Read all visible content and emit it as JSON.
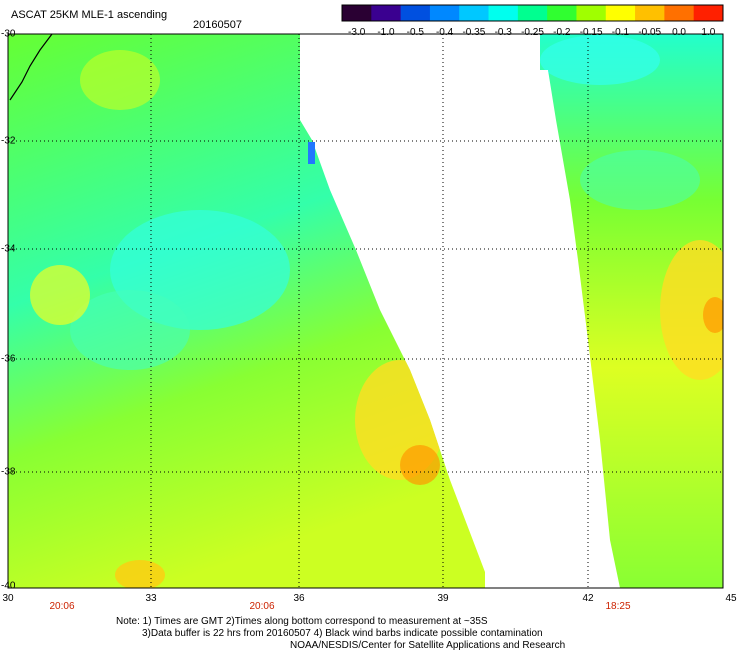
{
  "header": {
    "title": "ASCAT 25KM MLE-1 ascending",
    "date": "20160507"
  },
  "colorbar": {
    "labels": [
      "-3.0",
      "-1.0",
      "-0.5",
      "-0.4",
      "-0.35",
      "-0.3",
      "-0.25",
      "-0.2",
      "-0.15",
      "-0.1",
      "-0.05",
      "0.0",
      "1.0"
    ],
    "colors": [
      "#2a0033",
      "#3a0090",
      "#0050e0",
      "#0088ff",
      "#00c8ff",
      "#00ffee",
      "#00ff90",
      "#30ff30",
      "#a0ff00",
      "#ffff00",
      "#ffc000",
      "#ff7000",
      "#ff2000"
    ]
  },
  "axes": {
    "lat_labels": [
      "-30",
      "-32",
      "-34",
      "-36",
      "-38",
      "-40"
    ],
    "lon_labels": [
      "30",
      "33",
      "36",
      "39",
      "42",
      "45"
    ]
  },
  "swath_times": [
    "20:06",
    "20:06",
    "18:25"
  ],
  "notes": {
    "line1": "Note: 1) Times are GMT 2)Times along bottom correspond to measurement at ~35S",
    "line2": "3)Data buffer is 22 hrs from 20160507 4) Black wind barbs indicate possible contamination",
    "line3": "NOAA/NESDIS/Center for Satellite Applications and Research"
  }
}
